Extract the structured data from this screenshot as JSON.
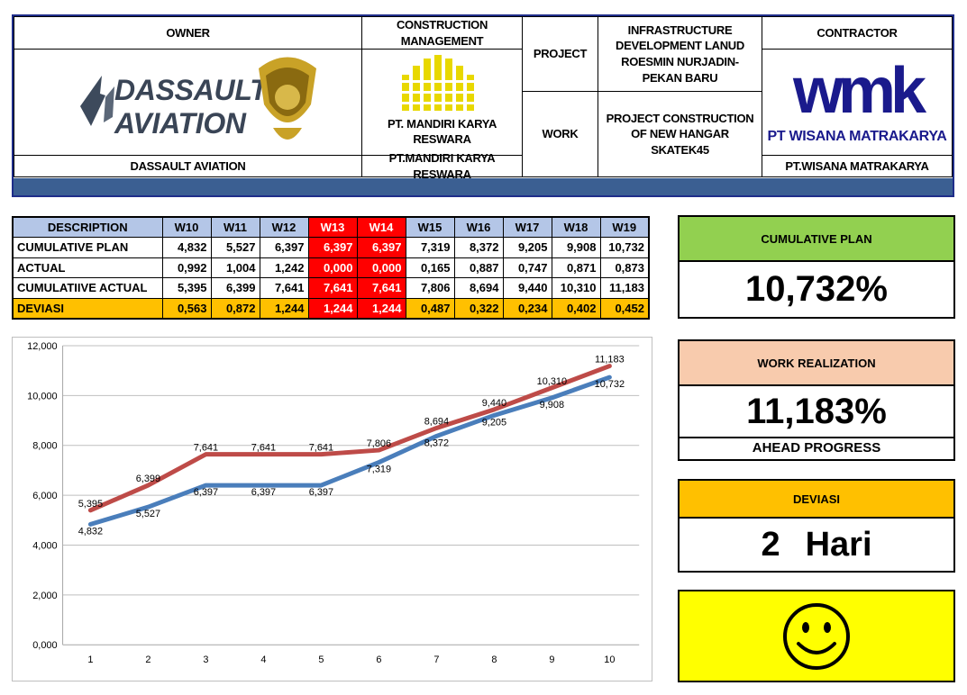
{
  "header": {
    "owner_label": "OWNER",
    "owner_name": "DASSAULT AVIATION",
    "owner_logo_line1": "DASSAULT",
    "owner_logo_line2": "AVIATION",
    "cm_label": "CONSTRUCTION MANAGEMENT",
    "cm_logo_caption": "PT. MANDIRI KARYA RESWARA",
    "cm_name": "PT.MANDIRI KARYA RESWARA",
    "project_label": "PROJECT",
    "project_value": "INFRASTRUCTURE DEVELOPMENT LANUD ROESMIN NURJADIN-PEKAN BARU",
    "work_label": "WORK",
    "work_value": "PROJECT CONSTRUCTION OF NEW HANGAR SKATEK45",
    "contractor_label": "CONTRACTOR",
    "contractor_logo": "wmk",
    "contractor_logo_caption": "PT WISANA MATRAKARYA",
    "contractor_name": "PT.WISANA MATRAKARYA"
  },
  "table": {
    "header_label": "DESCRIPTION",
    "weeks": [
      "W10",
      "W11",
      "W12",
      "W13",
      "W14",
      "W15",
      "W16",
      "W17",
      "W18",
      "W19"
    ],
    "highlight_weeks": [
      3,
      4
    ],
    "rows": [
      {
        "label": "CUMULATIVE PLAN",
        "values": [
          "4,832",
          "5,527",
          "6,397",
          "6,397",
          "6,397",
          "7,319",
          "8,372",
          "9,205",
          "9,908",
          "10,732"
        ]
      },
      {
        "label": "ACTUAL",
        "values": [
          "0,992",
          "1,004",
          "1,242",
          "0,000",
          "0,000",
          "0,165",
          "0,887",
          "0,747",
          "0,871",
          "0,873"
        ]
      },
      {
        "label": "CUMULATIIVE ACTUAL",
        "values": [
          "5,395",
          "6,399",
          "7,641",
          "7,641",
          "7,641",
          "7,806",
          "8,694",
          "9,440",
          "10,310",
          "11,183"
        ]
      },
      {
        "label": "DEVIASI",
        "values": [
          "0,563",
          "0,872",
          "1,244",
          "1,244",
          "1,244",
          "0,487",
          "0,322",
          "0,234",
          "0,402",
          "0,452"
        ]
      }
    ]
  },
  "chart_data": {
    "type": "line",
    "x": [
      1,
      2,
      3,
      4,
      5,
      6,
      7,
      8,
      9,
      10
    ],
    "ylim": [
      0,
      12
    ],
    "y_ticks": [
      "0,000",
      "2,000",
      "4,000",
      "6,000",
      "8,000",
      "10,000",
      "12,000"
    ],
    "grid": true,
    "series": [
      {
        "color": "#4a7ebb",
        "values": [
          4.832,
          5.527,
          6.397,
          6.397,
          6.397,
          7.319,
          8.372,
          9.205,
          9.908,
          10.732
        ],
        "labels": [
          "4,832",
          "5,527",
          "6,397",
          "6,397",
          "6,397",
          "7,319",
          "8,372",
          "9,205",
          "9,908",
          "10,732"
        ]
      },
      {
        "color": "#be4b48",
        "values": [
          5.395,
          6.399,
          7.641,
          7.641,
          7.641,
          7.806,
          8.694,
          9.44,
          10.31,
          11.183
        ],
        "labels": [
          "5,395",
          "6,399",
          "7,641",
          "7,641",
          "7,641",
          "7,806",
          "8,694",
          "9,440",
          "10,310",
          "11,183"
        ]
      }
    ]
  },
  "panels": {
    "plan": {
      "label": "CUMULATIVE PLAN",
      "value": "10,732%",
      "color": "#92d050"
    },
    "realization": {
      "label": "WORK REALIZATION",
      "value": "11,183%",
      "status": "AHEAD PROGRESS",
      "color": "#f8cbad"
    },
    "deviasi": {
      "label": "DEVIASI",
      "value": "2",
      "unit": "Hari",
      "color": "#ffc000"
    },
    "mood": {
      "icon": "smiley-face-icon",
      "color": "#ffff00"
    }
  }
}
